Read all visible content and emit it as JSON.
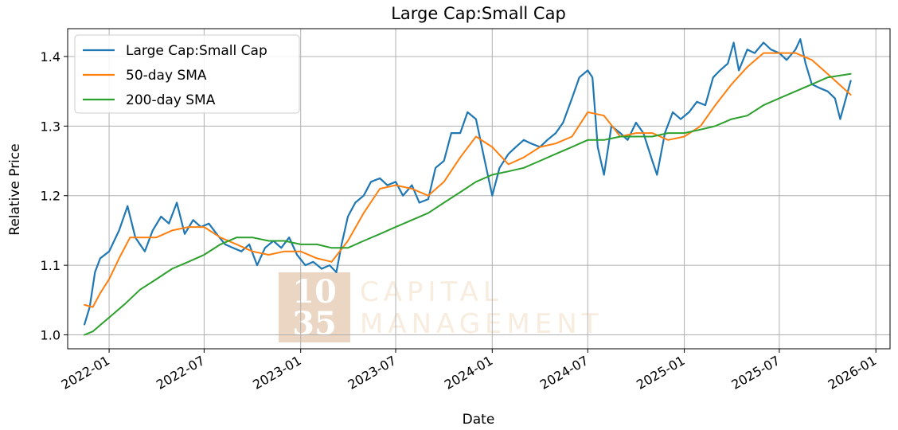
{
  "chart_data": {
    "type": "line",
    "title": "Large Cap:Small Cap",
    "xlabel": "Date",
    "ylabel": "Relative Price",
    "xlim": [
      "2021-10-14",
      "2026-01-28"
    ],
    "ylim": [
      0.98,
      1.44
    ],
    "grid": true,
    "legend_position": "top-left",
    "x_ticks": [
      "2022-01",
      "2022-07",
      "2023-01",
      "2023-07",
      "2024-01",
      "2024-07",
      "2025-01",
      "2025-07",
      "2026-01"
    ],
    "y_ticks": [
      "1.0",
      "1.1",
      "1.2",
      "1.3",
      "1.4"
    ],
    "series": [
      {
        "name": "Large Cap:Small Cap",
        "color": "#1f77b4",
        "points": [
          [
            "2021-11-15",
            1.015
          ],
          [
            "2021-11-25",
            1.04
          ],
          [
            "2021-12-05",
            1.09
          ],
          [
            "2021-12-15",
            1.11
          ],
          [
            "2022-01-01",
            1.12
          ],
          [
            "2022-01-20",
            1.15
          ],
          [
            "2022-02-05",
            1.185
          ],
          [
            "2022-02-20",
            1.14
          ],
          [
            "2022-03-10",
            1.12
          ],
          [
            "2022-03-25",
            1.15
          ],
          [
            "2022-04-10",
            1.17
          ],
          [
            "2022-04-25",
            1.16
          ],
          [
            "2022-05-10",
            1.19
          ],
          [
            "2022-05-25",
            1.145
          ],
          [
            "2022-06-10",
            1.165
          ],
          [
            "2022-06-25",
            1.155
          ],
          [
            "2022-07-10",
            1.16
          ],
          [
            "2022-07-25",
            1.145
          ],
          [
            "2022-08-10",
            1.13
          ],
          [
            "2022-08-25",
            1.125
          ],
          [
            "2022-09-10",
            1.12
          ],
          [
            "2022-09-25",
            1.13
          ],
          [
            "2022-10-10",
            1.1
          ],
          [
            "2022-10-25",
            1.125
          ],
          [
            "2022-11-10",
            1.135
          ],
          [
            "2022-11-25",
            1.125
          ],
          [
            "2022-12-10",
            1.14
          ],
          [
            "2022-12-25",
            1.115
          ],
          [
            "2023-01-10",
            1.1
          ],
          [
            "2023-01-25",
            1.105
          ],
          [
            "2023-02-10",
            1.095
          ],
          [
            "2023-02-25",
            1.1
          ],
          [
            "2023-03-10",
            1.09
          ],
          [
            "2023-03-20",
            1.13
          ],
          [
            "2023-04-01",
            1.17
          ],
          [
            "2023-04-15",
            1.19
          ],
          [
            "2023-05-01",
            1.2
          ],
          [
            "2023-05-15",
            1.22
          ],
          [
            "2023-06-01",
            1.225
          ],
          [
            "2023-06-15",
            1.215
          ],
          [
            "2023-07-01",
            1.22
          ],
          [
            "2023-07-15",
            1.2
          ],
          [
            "2023-08-01",
            1.215
          ],
          [
            "2023-08-15",
            1.19
          ],
          [
            "2023-09-01",
            1.195
          ],
          [
            "2023-09-15",
            1.24
          ],
          [
            "2023-10-01",
            1.25
          ],
          [
            "2023-10-15",
            1.29
          ],
          [
            "2023-11-01",
            1.29
          ],
          [
            "2023-11-15",
            1.32
          ],
          [
            "2023-12-01",
            1.31
          ],
          [
            "2023-12-15",
            1.26
          ],
          [
            "2024-01-01",
            1.2
          ],
          [
            "2024-01-15",
            1.24
          ],
          [
            "2024-02-01",
            1.26
          ],
          [
            "2024-02-15",
            1.27
          ],
          [
            "2024-03-01",
            1.28
          ],
          [
            "2024-03-15",
            1.275
          ],
          [
            "2024-04-01",
            1.27
          ],
          [
            "2024-04-15",
            1.28
          ],
          [
            "2024-05-01",
            1.29
          ],
          [
            "2024-05-15",
            1.305
          ],
          [
            "2024-06-01",
            1.34
          ],
          [
            "2024-06-15",
            1.37
          ],
          [
            "2024-07-01",
            1.38
          ],
          [
            "2024-07-10",
            1.37
          ],
          [
            "2024-07-20",
            1.27
          ],
          [
            "2024-08-01",
            1.23
          ],
          [
            "2024-08-15",
            1.3
          ],
          [
            "2024-09-01",
            1.29
          ],
          [
            "2024-09-15",
            1.28
          ],
          [
            "2024-10-01",
            1.305
          ],
          [
            "2024-10-15",
            1.29
          ],
          [
            "2024-11-01",
            1.25
          ],
          [
            "2024-11-10",
            1.23
          ],
          [
            "2024-11-25",
            1.29
          ],
          [
            "2024-12-10",
            1.32
          ],
          [
            "2024-12-25",
            1.31
          ],
          [
            "2025-01-10",
            1.32
          ],
          [
            "2025-01-25",
            1.335
          ],
          [
            "2025-02-10",
            1.33
          ],
          [
            "2025-02-25",
            1.37
          ],
          [
            "2025-03-10",
            1.38
          ],
          [
            "2025-03-25",
            1.39
          ],
          [
            "2025-04-05",
            1.42
          ],
          [
            "2025-04-15",
            1.38
          ],
          [
            "2025-05-01",
            1.41
          ],
          [
            "2025-05-15",
            1.405
          ],
          [
            "2025-06-01",
            1.42
          ],
          [
            "2025-06-15",
            1.41
          ],
          [
            "2025-07-01",
            1.405
          ],
          [
            "2025-07-15",
            1.395
          ],
          [
            "2025-08-01",
            1.41
          ],
          [
            "2025-08-10",
            1.425
          ],
          [
            "2025-08-20",
            1.39
          ],
          [
            "2025-09-01",
            1.36
          ],
          [
            "2025-09-15",
            1.355
          ],
          [
            "2025-10-01",
            1.35
          ],
          [
            "2025-10-15",
            1.34
          ],
          [
            "2025-10-25",
            1.31
          ],
          [
            "2025-11-05",
            1.34
          ],
          [
            "2025-11-14",
            1.365
          ]
        ]
      },
      {
        "name": "50-day SMA",
        "color": "#ff7f0e",
        "points": [
          [
            "2021-11-15",
            1.043
          ],
          [
            "2021-12-01",
            1.04
          ],
          [
            "2021-12-15",
            1.06
          ],
          [
            "2022-01-01",
            1.08
          ],
          [
            "2022-01-20",
            1.11
          ],
          [
            "2022-02-10",
            1.14
          ],
          [
            "2022-03-01",
            1.14
          ],
          [
            "2022-04-01",
            1.14
          ],
          [
            "2022-05-01",
            1.15
          ],
          [
            "2022-06-01",
            1.155
          ],
          [
            "2022-07-01",
            1.155
          ],
          [
            "2022-08-01",
            1.14
          ],
          [
            "2022-09-01",
            1.13
          ],
          [
            "2022-10-01",
            1.12
          ],
          [
            "2022-11-01",
            1.115
          ],
          [
            "2022-12-01",
            1.12
          ],
          [
            "2023-01-01",
            1.12
          ],
          [
            "2023-02-01",
            1.11
          ],
          [
            "2023-03-01",
            1.105
          ],
          [
            "2023-04-01",
            1.135
          ],
          [
            "2023-05-01",
            1.175
          ],
          [
            "2023-06-01",
            1.21
          ],
          [
            "2023-07-01",
            1.215
          ],
          [
            "2023-08-01",
            1.21
          ],
          [
            "2023-09-01",
            1.2
          ],
          [
            "2023-10-01",
            1.22
          ],
          [
            "2023-11-01",
            1.255
          ],
          [
            "2023-12-01",
            1.285
          ],
          [
            "2024-01-01",
            1.27
          ],
          [
            "2024-02-01",
            1.245
          ],
          [
            "2024-03-01",
            1.255
          ],
          [
            "2024-04-01",
            1.27
          ],
          [
            "2024-05-01",
            1.275
          ],
          [
            "2024-06-01",
            1.285
          ],
          [
            "2024-07-01",
            1.32
          ],
          [
            "2024-08-01",
            1.315
          ],
          [
            "2024-09-01",
            1.285
          ],
          [
            "2024-10-01",
            1.29
          ],
          [
            "2024-11-01",
            1.29
          ],
          [
            "2024-12-01",
            1.28
          ],
          [
            "2025-01-01",
            1.285
          ],
          [
            "2025-02-01",
            1.3
          ],
          [
            "2025-03-01",
            1.33
          ],
          [
            "2025-04-01",
            1.36
          ],
          [
            "2025-05-01",
            1.385
          ],
          [
            "2025-06-01",
            1.405
          ],
          [
            "2025-07-01",
            1.405
          ],
          [
            "2025-08-01",
            1.405
          ],
          [
            "2025-09-01",
            1.395
          ],
          [
            "2025-10-01",
            1.375
          ],
          [
            "2025-11-14",
            1.345
          ]
        ]
      },
      {
        "name": "200-day SMA",
        "color": "#2ca02c",
        "points": [
          [
            "2021-11-15",
            1.0
          ],
          [
            "2021-12-01",
            1.005
          ],
          [
            "2022-01-01",
            1.025
          ],
          [
            "2022-02-01",
            1.045
          ],
          [
            "2022-03-01",
            1.065
          ],
          [
            "2022-04-01",
            1.08
          ],
          [
            "2022-05-01",
            1.095
          ],
          [
            "2022-06-01",
            1.105
          ],
          [
            "2022-07-01",
            1.115
          ],
          [
            "2022-08-01",
            1.13
          ],
          [
            "2022-09-01",
            1.14
          ],
          [
            "2022-10-01",
            1.14
          ],
          [
            "2022-11-01",
            1.135
          ],
          [
            "2022-12-01",
            1.135
          ],
          [
            "2023-01-01",
            1.13
          ],
          [
            "2023-02-01",
            1.13
          ],
          [
            "2023-03-01",
            1.125
          ],
          [
            "2023-04-01",
            1.125
          ],
          [
            "2023-05-01",
            1.135
          ],
          [
            "2023-06-01",
            1.145
          ],
          [
            "2023-07-01",
            1.155
          ],
          [
            "2023-08-01",
            1.165
          ],
          [
            "2023-09-01",
            1.175
          ],
          [
            "2023-10-01",
            1.19
          ],
          [
            "2023-11-01",
            1.205
          ],
          [
            "2023-12-01",
            1.22
          ],
          [
            "2024-01-01",
            1.23
          ],
          [
            "2024-02-01",
            1.235
          ],
          [
            "2024-03-01",
            1.24
          ],
          [
            "2024-04-01",
            1.25
          ],
          [
            "2024-05-01",
            1.26
          ],
          [
            "2024-06-01",
            1.27
          ],
          [
            "2024-07-01",
            1.28
          ],
          [
            "2024-08-01",
            1.28
          ],
          [
            "2024-09-01",
            1.285
          ],
          [
            "2024-10-01",
            1.285
          ],
          [
            "2024-11-01",
            1.285
          ],
          [
            "2024-12-01",
            1.29
          ],
          [
            "2025-01-01",
            1.29
          ],
          [
            "2025-02-01",
            1.295
          ],
          [
            "2025-03-01",
            1.3
          ],
          [
            "2025-04-01",
            1.31
          ],
          [
            "2025-05-01",
            1.315
          ],
          [
            "2025-06-01",
            1.33
          ],
          [
            "2025-07-01",
            1.34
          ],
          [
            "2025-08-01",
            1.35
          ],
          [
            "2025-09-01",
            1.36
          ],
          [
            "2025-10-01",
            1.37
          ],
          [
            "2025-11-14",
            1.375
          ]
        ]
      }
    ]
  },
  "watermark": {
    "logo_line1": "10",
    "logo_line2": "35",
    "word1": "CAPITAL",
    "word2": "MANAGEMENT",
    "logo_color": "#ead6c2",
    "text_color": "#f7ecdd"
  }
}
